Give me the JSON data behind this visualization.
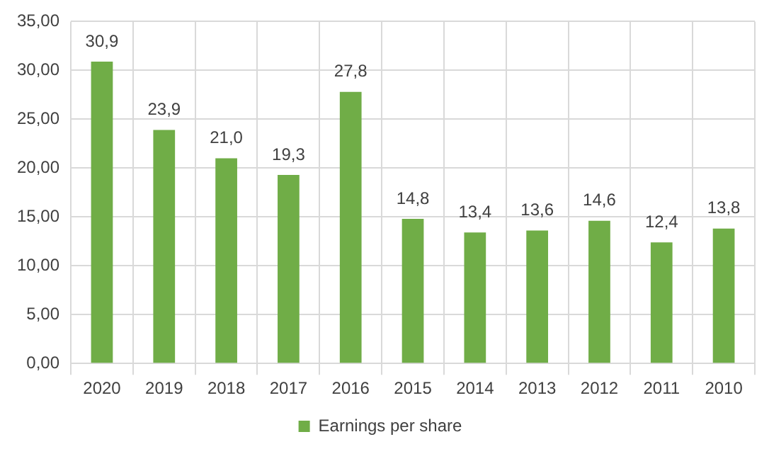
{
  "chart_data": {
    "type": "bar",
    "categories": [
      "2020",
      "2019",
      "2018",
      "2017",
      "2016",
      "2015",
      "2014",
      "2013",
      "2012",
      "2011",
      "2010"
    ],
    "series": [
      {
        "name": "Earnings per share",
        "color": "#70ad47",
        "values": [
          30.9,
          23.9,
          21.0,
          19.3,
          27.8,
          14.8,
          13.4,
          13.6,
          14.6,
          12.4,
          13.8
        ],
        "value_labels": [
          "30,9",
          "23,9",
          "21,0",
          "19,3",
          "27,8",
          "14,8",
          "13,4",
          "13,6",
          "14,6",
          "12,4",
          "13,8"
        ]
      }
    ],
    "ylim": [
      0,
      35
    ],
    "yticks": [
      {
        "value": 0,
        "label": "0,00"
      },
      {
        "value": 5,
        "label": "5,00"
      },
      {
        "value": 10,
        "label": "10,00"
      },
      {
        "value": 15,
        "label": "15,00"
      },
      {
        "value": 20,
        "label": "20,00"
      },
      {
        "value": 25,
        "label": "25,00"
      },
      {
        "value": 30,
        "label": "30,00"
      },
      {
        "value": 35,
        "label": "35,00"
      }
    ],
    "grid": true,
    "legend": "bottom"
  }
}
